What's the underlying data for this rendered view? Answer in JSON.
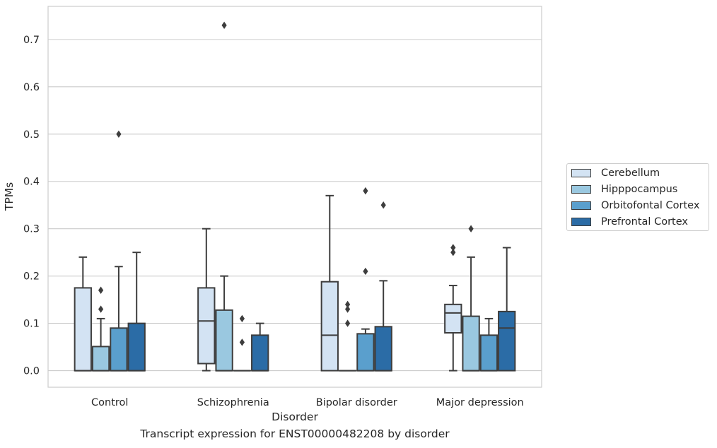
{
  "chart_data": {
    "type": "box",
    "xlabel": "Disorder",
    "ylabel": "TPMs",
    "ylim": [
      -0.035,
      0.77
    ],
    "yticks": [
      "0.0",
      "0.1",
      "0.2",
      "0.3",
      "0.4",
      "0.5",
      "0.6",
      "0.7"
    ],
    "ytick_values": [
      0,
      0.1,
      0.2,
      0.3,
      0.4,
      0.5,
      0.6,
      0.7
    ],
    "grid": true,
    "legend_position": "right",
    "categories": [
      "Control",
      "Schizophrenia",
      "Bipolar disorder",
      "Major depression"
    ],
    "series": [
      {
        "name": "Cerebellum",
        "color": "#d3e3f3",
        "boxes": [
          {
            "whislo": 0.0,
            "q1": 0.0,
            "med": 0.0,
            "q3": 0.175,
            "whishi": 0.24,
            "fliers": []
          },
          {
            "whislo": 0.0,
            "q1": 0.015,
            "med": 0.105,
            "q3": 0.175,
            "whishi": 0.3,
            "fliers": []
          },
          {
            "whislo": 0.0,
            "q1": 0.0,
            "med": 0.075,
            "q3": 0.188,
            "whishi": 0.37,
            "fliers": []
          },
          {
            "whislo": 0.0,
            "q1": 0.08,
            "med": 0.122,
            "q3": 0.14,
            "whishi": 0.18,
            "fliers": [
              0.25,
              0.26
            ]
          }
        ]
      },
      {
        "name": "Hipppocampus",
        "color": "#9ac8e0",
        "boxes": [
          {
            "whislo": 0.0,
            "q1": 0.0,
            "med": 0.0,
            "q3": 0.051,
            "whishi": 0.11,
            "fliers": [
              0.13,
              0.17
            ]
          },
          {
            "whislo": 0.0,
            "q1": 0.0,
            "med": 0.0,
            "q3": 0.128,
            "whishi": 0.2,
            "fliers": [
              0.73
            ]
          },
          {
            "whislo": 0.0,
            "q1": 0.0,
            "med": 0.0,
            "q3": 0.0,
            "whishi": 0.0,
            "fliers": [
              0.1,
              0.13,
              0.14
            ]
          },
          {
            "whislo": 0.0,
            "q1": 0.0,
            "med": 0.0,
            "q3": 0.115,
            "whishi": 0.24,
            "fliers": [
              0.3
            ]
          }
        ]
      },
      {
        "name": "Orbitofontal Cortex",
        "color": "#5a9fcd",
        "boxes": [
          {
            "whislo": 0.0,
            "q1": 0.0,
            "med": 0.0,
            "q3": 0.09,
            "whishi": 0.22,
            "fliers": [
              0.5
            ]
          },
          {
            "whislo": 0.0,
            "q1": 0.0,
            "med": 0.0,
            "q3": 0.0,
            "whishi": 0.0,
            "fliers": [
              0.06,
              0.11
            ]
          },
          {
            "whislo": 0.0,
            "q1": 0.0,
            "med": 0.0,
            "q3": 0.078,
            "whishi": 0.088,
            "fliers": [
              0.21,
              0.38
            ]
          },
          {
            "whislo": 0.0,
            "q1": 0.0,
            "med": 0.0,
            "q3": 0.075,
            "whishi": 0.11,
            "fliers": []
          }
        ]
      },
      {
        "name": "Prefrontal Cortex",
        "color": "#2b6ca6",
        "boxes": [
          {
            "whislo": 0.0,
            "q1": 0.0,
            "med": 0.0,
            "q3": 0.1,
            "whishi": 0.25,
            "fliers": []
          },
          {
            "whislo": 0.0,
            "q1": 0.0,
            "med": 0.0,
            "q3": 0.075,
            "whishi": 0.1,
            "fliers": []
          },
          {
            "whislo": 0.0,
            "q1": 0.0,
            "med": 0.0,
            "q3": 0.093,
            "whishi": 0.19,
            "fliers": [
              0.35
            ]
          },
          {
            "whislo": 0.0,
            "q1": 0.0,
            "med": 0.09,
            "q3": 0.125,
            "whishi": 0.26,
            "fliers": []
          }
        ]
      }
    ]
  },
  "caption": "Transcript expression for ENST00000482208 by disorder"
}
